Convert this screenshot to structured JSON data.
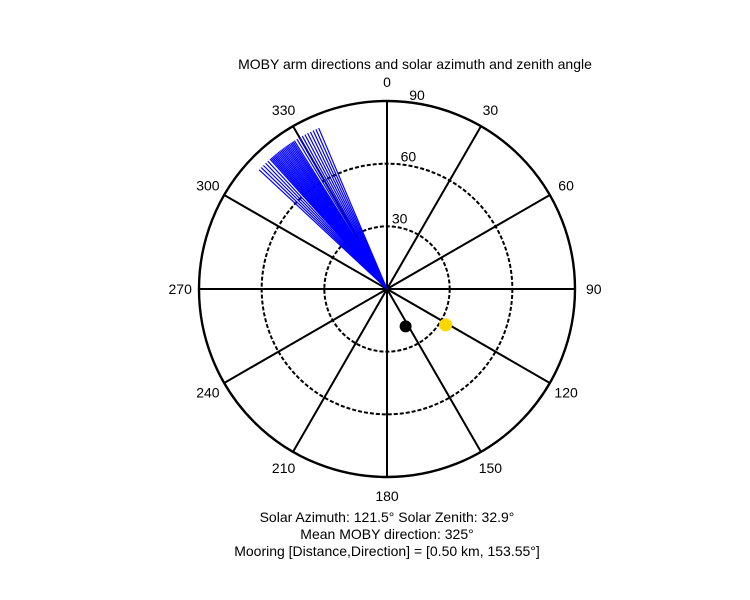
{
  "chart_data": {
    "type": "polar",
    "title": "MOBY arm directions and solar azimuth and zenith angle",
    "angle_ticks": [
      "0",
      "30",
      "60",
      "90",
      "120",
      "150",
      "180",
      "210",
      "240",
      "270",
      "300",
      "330"
    ],
    "radial_ticks": [
      30,
      60,
      90
    ],
    "radial_tick_labels": [
      "30",
      "60",
      "90"
    ],
    "rlim": [
      0,
      90
    ],
    "theta_zero": "top",
    "theta_direction": "clockwise",
    "grid": true,
    "series": [
      {
        "kind": "arm_direction_lines",
        "color": "#0000ff",
        "r": 90,
        "theta_deg": [
          313,
          314,
          315,
          316,
          317,
          318,
          319,
          320,
          321,
          322,
          323,
          324,
          325,
          325.5,
          326,
          326.5,
          327,
          327.5,
          328,
          329,
          330,
          331,
          332,
          333,
          334,
          335,
          336,
          337,
          318.5,
          319.5,
          320.5,
          321.5,
          322.5,
          323.5,
          324.5
        ]
      },
      {
        "kind": "solar_marker",
        "color": "#ffd700",
        "marker": "star",
        "theta_deg": 121.5,
        "r": 32.9
      },
      {
        "kind": "mooring_marker",
        "color": "#000000",
        "marker": "circle",
        "theta_deg": 153.55,
        "r": 20.0
      }
    ],
    "captions": [
      {
        "id": "solar",
        "text": "Solar Azimuth: 121.5°   Solar Zenith: 32.9°"
      },
      {
        "id": "mean",
        "text": "Mean MOBY direction: 325°"
      },
      {
        "id": "mooring",
        "text": "Mooring [Distance,Direction] = [0.50 km, 153.55°]"
      }
    ]
  }
}
